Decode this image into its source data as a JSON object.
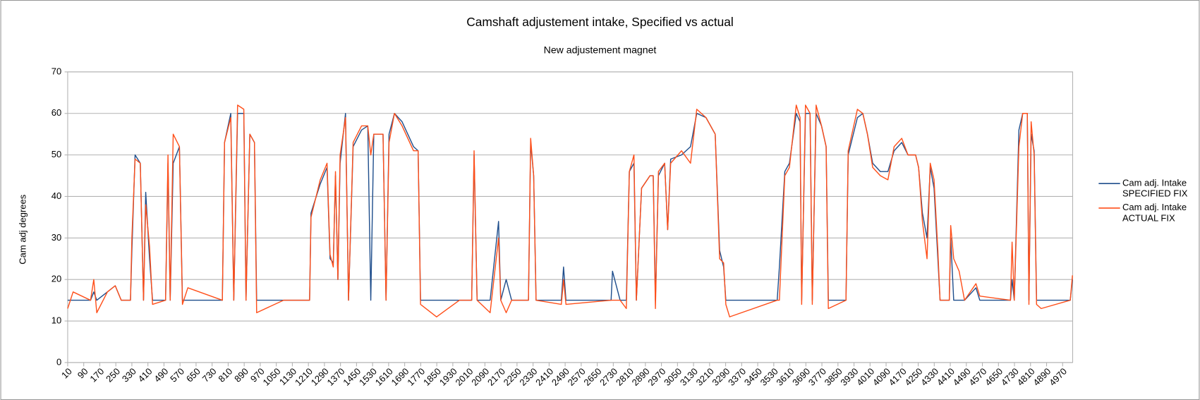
{
  "chart_data": {
    "type": "line",
    "title": "Camshaft adjustement intake, Specified vs actual",
    "subtitle": "New adjustement magnet",
    "y_label": "Cam adj  degrees",
    "grid": true,
    "legend": "right",
    "xlim": [
      10,
      5020
    ],
    "ylim": [
      0,
      70
    ],
    "yticks": [
      0,
      10,
      20,
      30,
      40,
      50,
      60,
      70
    ],
    "xticks": [
      10,
      90,
      170,
      250,
      330,
      410,
      490,
      570,
      650,
      730,
      810,
      890,
      970,
      1050,
      1130,
      1210,
      1290,
      1370,
      1450,
      1530,
      1610,
      1690,
      1770,
      1850,
      1930,
      2010,
      2090,
      2170,
      2250,
      2330,
      2410,
      2490,
      2570,
      2650,
      2730,
      2810,
      2890,
      2970,
      3050,
      3130,
      3210,
      3290,
      3370,
      3450,
      3530,
      3610,
      3690,
      3770,
      3850,
      3930,
      4010,
      4090,
      4170,
      4250,
      4330,
      4410,
      4490,
      4570,
      4650,
      4730,
      4810,
      4890,
      4970
    ],
    "x": [
      10,
      37,
      124,
      140,
      155,
      208,
      247,
      277,
      323,
      330,
      346,
      372,
      388,
      399,
      418,
      433,
      498,
      510,
      521,
      536,
      567,
      582,
      609,
      781,
      792,
      823,
      838,
      857,
      888,
      899,
      918,
      941,
      952,
      1086,
      1216,
      1223,
      1269,
      1303,
      1318,
      1334,
      1345,
      1357,
      1368,
      1395,
      1410,
      1433,
      1475,
      1506,
      1521,
      1536,
      1582,
      1597,
      1612,
      1639,
      1677,
      1734,
      1757,
      1769,
      1849,
      1963,
      2024,
      2036,
      2051,
      2116,
      2158,
      2169,
      2196,
      2223,
      2307,
      2318,
      2333,
      2345,
      2471,
      2482,
      2494,
      2719,
      2726,
      2764,
      2795,
      2810,
      2833,
      2845,
      2871,
      2913,
      2929,
      2940,
      2955,
      2986,
      3001,
      3016,
      3070,
      3115,
      3146,
      3192,
      3238,
      3260,
      3280,
      3291,
      3310,
      3547,
      3558,
      3585,
      3608,
      3642,
      3661,
      3669,
      3688,
      3711,
      3722,
      3741,
      3768,
      3791,
      3802,
      3890,
      3901,
      3947,
      3974,
      3997,
      4023,
      4061,
      4099,
      4130,
      4168,
      4199,
      4237,
      4252,
      4271,
      4294,
      4310,
      4329,
      4348,
      4359,
      4405,
      4412,
      4427,
      4454,
      4481,
      4538,
      4557,
      4710,
      4718,
      4729,
      4752,
      4771,
      4794,
      4802,
      4813,
      4828,
      4840,
      4863,
      5008,
      5019
    ],
    "series": [
      {
        "name": "Cam adj. Intake SPECIFIED FIX",
        "color": "#1f4e8c",
        "values": [
          15,
          15,
          15,
          17,
          15,
          17,
          18.5,
          15,
          15,
          27,
          50,
          48,
          15,
          41,
          25,
          15,
          15,
          48,
          15,
          48,
          52,
          15,
          15,
          15,
          53,
          60,
          15,
          60,
          60,
          15,
          55,
          53,
          15,
          15,
          15,
          36,
          43,
          47,
          25,
          24,
          45,
          20,
          48,
          60,
          15,
          52,
          56,
          57,
          15,
          55,
          55,
          15,
          55,
          60,
          58,
          52,
          51,
          15,
          15,
          15,
          15,
          50,
          15,
          15,
          34,
          15,
          20,
          15,
          15,
          53,
          45,
          15,
          15,
          23,
          15,
          15,
          22,
          15,
          15,
          46,
          48,
          15,
          42,
          45,
          45,
          15,
          45,
          48,
          32,
          49,
          50,
          52,
          60,
          59,
          55,
          27,
          23,
          15,
          15,
          15,
          23,
          46,
          48,
          60,
          58,
          15,
          60,
          60,
          15,
          60,
          57,
          52,
          15,
          15,
          50,
          59,
          60,
          55,
          48,
          46,
          46,
          51,
          53,
          50,
          50,
          47,
          36,
          30,
          47,
          42,
          25,
          15,
          15,
          30,
          15,
          15,
          15,
          18,
          15,
          15,
          20,
          15,
          56,
          60,
          60,
          15,
          55,
          51,
          15,
          15,
          15,
          20
        ]
      },
      {
        "name": "Cam adj. Intake ACTUAL FIX",
        "color": "#ff4f1a",
        "values": [
          13,
          17,
          15,
          20,
          12,
          17,
          18.5,
          15,
          15,
          30,
          49,
          48,
          15,
          38,
          28,
          14,
          15,
          50,
          15,
          55,
          52,
          14,
          18,
          15,
          53,
          59,
          15,
          62,
          61,
          15,
          55,
          53,
          12,
          15,
          15,
          35,
          44,
          48,
          26,
          23,
          46,
          20,
          50,
          59,
          15,
          53,
          57,
          57,
          50,
          55,
          55,
          15,
          53,
          60,
          57,
          51,
          51,
          14,
          11,
          15,
          15,
          51,
          15,
          12,
          30,
          15,
          12,
          15,
          15,
          54,
          45,
          15,
          14,
          20,
          14,
          15,
          15,
          15,
          13,
          46,
          50,
          15,
          42,
          45,
          45,
          13,
          46,
          48,
          32,
          48,
          51,
          48,
          61,
          59,
          55,
          25,
          24,
          14,
          11,
          15,
          15,
          45,
          47,
          62,
          59,
          14,
          62,
          60,
          14,
          62,
          57,
          52,
          13,
          15,
          51,
          61,
          60,
          55,
          47,
          45,
          44,
          52,
          54,
          50,
          50,
          47,
          34,
          25,
          48,
          44,
          27,
          15,
          15,
          33,
          25,
          22,
          15,
          19,
          16,
          15,
          29,
          15,
          52,
          60,
          60,
          14,
          58,
          50,
          14,
          13,
          15,
          21
        ]
      }
    ]
  }
}
